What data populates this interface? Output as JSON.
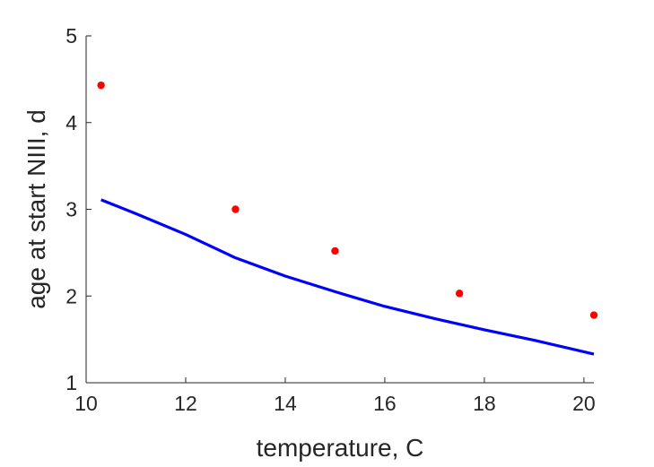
{
  "chart_data": {
    "type": "scatter",
    "title": "",
    "xlabel": "temperature, C",
    "ylabel": "age at start NIII, d",
    "xlim": [
      10,
      20.2
    ],
    "ylim": [
      1,
      5
    ],
    "x_ticks": [
      "10",
      "12",
      "14",
      "16",
      "18",
      "20"
    ],
    "y_ticks": [
      "1",
      "2",
      "3",
      "4",
      "5"
    ],
    "grid": false,
    "legend": "none",
    "series": [
      {
        "kind": "scatter",
        "color": "#ff0000",
        "x": [
          10.3,
          13.0,
          15.0,
          17.5,
          20.2
        ],
        "y": [
          4.43,
          3.0,
          2.52,
          2.03,
          1.78
        ]
      },
      {
        "kind": "line",
        "color": "#0000ff",
        "x": [
          10.3,
          11.0,
          12.0,
          13.0,
          14.0,
          15.0,
          16.0,
          17.0,
          18.0,
          19.0,
          20.2
        ],
        "y": [
          3.11,
          2.95,
          2.71,
          2.44,
          2.23,
          2.05,
          1.88,
          1.74,
          1.61,
          1.49,
          1.33
        ]
      }
    ]
  }
}
